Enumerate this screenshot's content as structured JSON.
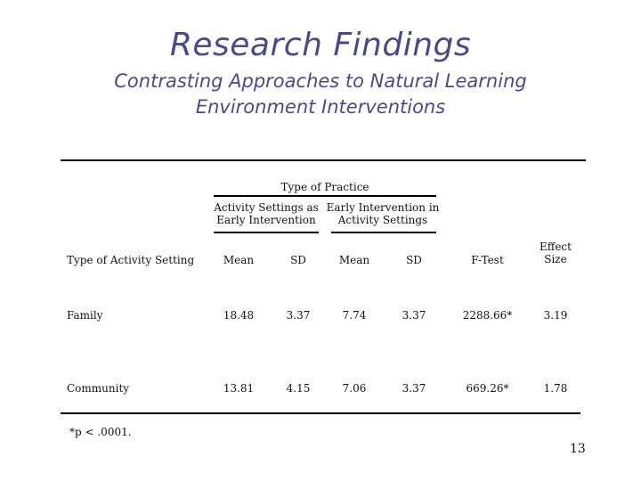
{
  "slide": {
    "title": "Research Findings",
    "subtitle_line1": "Contrasting Approaches to Natural Learning",
    "subtitle_line2": "Environment Interventions",
    "page_number": "13",
    "accent_color": "#4a4a8a"
  },
  "table": {
    "group_header": "Type of Practice",
    "group1": "Activity Settings as Early Intervention",
    "group2": "Early Intervention in Activity Settings",
    "headers": {
      "setting": "Type of Activity Setting",
      "mean1": "Mean",
      "sd1": "SD",
      "mean2": "Mean",
      "sd2": "SD",
      "ftest": "F-Test",
      "effect": "Effect Size"
    },
    "rows": [
      {
        "setting": "Family",
        "mean1": "18.48",
        "sd1": "3.37",
        "mean2": "7.74",
        "sd2": "3.37",
        "ftest": "2288.66*",
        "effect": "3.19"
      },
      {
        "setting": "Community",
        "mean1": "13.81",
        "sd1": "4.15",
        "mean2": "7.06",
        "sd2": "3.37",
        "ftest": "669.26*",
        "effect": "1.78"
      }
    ],
    "footnote": "*p < .0001."
  }
}
